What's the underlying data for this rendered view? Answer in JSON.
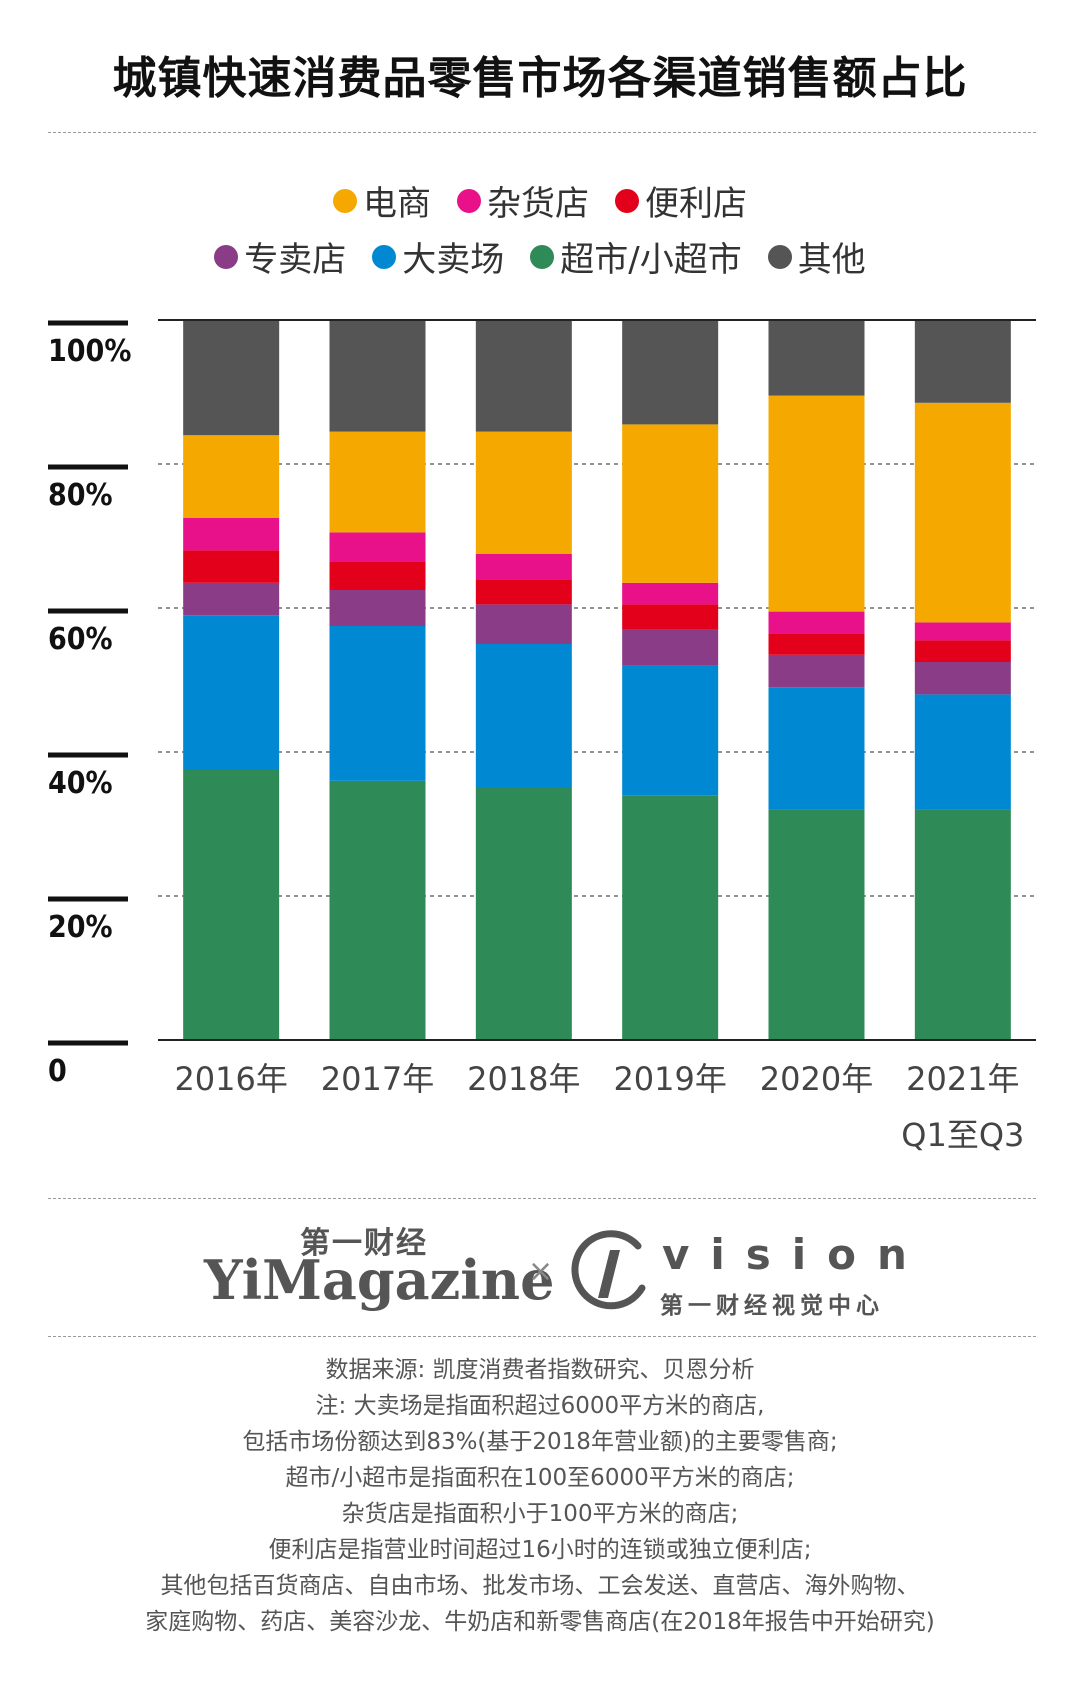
{
  "title": "城镇快速消费品零售市场各渠道销售额占比",
  "legend": {
    "row1": [
      {
        "label": "电商",
        "color": "#F5A800"
      },
      {
        "label": "杂货店",
        "color": "#E8118A"
      },
      {
        "label": "便利店",
        "color": "#E2001A"
      }
    ],
    "row2": [
      {
        "label": "专卖店",
        "color": "#8A3C86"
      },
      {
        "label": "大卖场",
        "color": "#0088D2"
      },
      {
        "label": "超市/小超市",
        "color": "#2E8B57"
      },
      {
        "label": "其他",
        "color": "#555555"
      }
    ]
  },
  "chart_data": {
    "type": "bar",
    "stacked": true,
    "categories": [
      "2016年",
      "2017年",
      "2018年",
      "2019年",
      "2020年",
      "2021年\nQ1至Q3"
    ],
    "y_ticks": [
      "0",
      "20%",
      "40%",
      "60%",
      "80%",
      "100%"
    ],
    "ylim": [
      0,
      100
    ],
    "grid": true,
    "series": [
      {
        "name": "超市/小超市",
        "color": "#2E8B57",
        "values": [
          37.5,
          36,
          35,
          34,
          32,
          32
        ]
      },
      {
        "name": "大卖场",
        "color": "#0088D2",
        "values": [
          21.5,
          21.5,
          20,
          18,
          17,
          16
        ]
      },
      {
        "name": "专卖店",
        "color": "#8A3C86",
        "values": [
          4.5,
          5,
          5.5,
          5,
          4.5,
          4.5
        ]
      },
      {
        "name": "便利店",
        "color": "#E2001A",
        "values": [
          4.5,
          4,
          3.5,
          3.5,
          3,
          3
        ]
      },
      {
        "name": "杂货店",
        "color": "#E8118A",
        "values": [
          4.5,
          4,
          3.5,
          3,
          3,
          2.5
        ]
      },
      {
        "name": "电商",
        "color": "#F5A800",
        "values": [
          11.5,
          14,
          17,
          22,
          30,
          30.5
        ]
      },
      {
        "name": "其他",
        "color": "#555555",
        "values": [
          16,
          15.5,
          15.5,
          14.5,
          10.5,
          11.5
        ]
      }
    ]
  },
  "logos": {
    "cn_name": "第一财经",
    "yimagazine": "YiMagazine",
    "separator": "×",
    "vision": "vision",
    "vision_cn": "第一财经视觉中心"
  },
  "notes": [
    "数据来源: 凯度消费者指数研究、贝恩分析",
    "注: 大卖场是指面积超过6000平方米的商店,",
    "包括市场份额达到83%(基于2018年营业额)的主要零售商;",
    "超市/小超市是指面积在100至6000平方米的商店;",
    "杂货店是指面积小于100平方米的商店;",
    "便利店是指营业时间超过16小时的连锁或独立便利店;",
    "其他包括百货商店、自由市场、批发市场、工会发送、直营店、海外购物、",
    "家庭购物、药店、美容沙龙、牛奶店和新零售商店(在2018年报告中开始研究)"
  ]
}
